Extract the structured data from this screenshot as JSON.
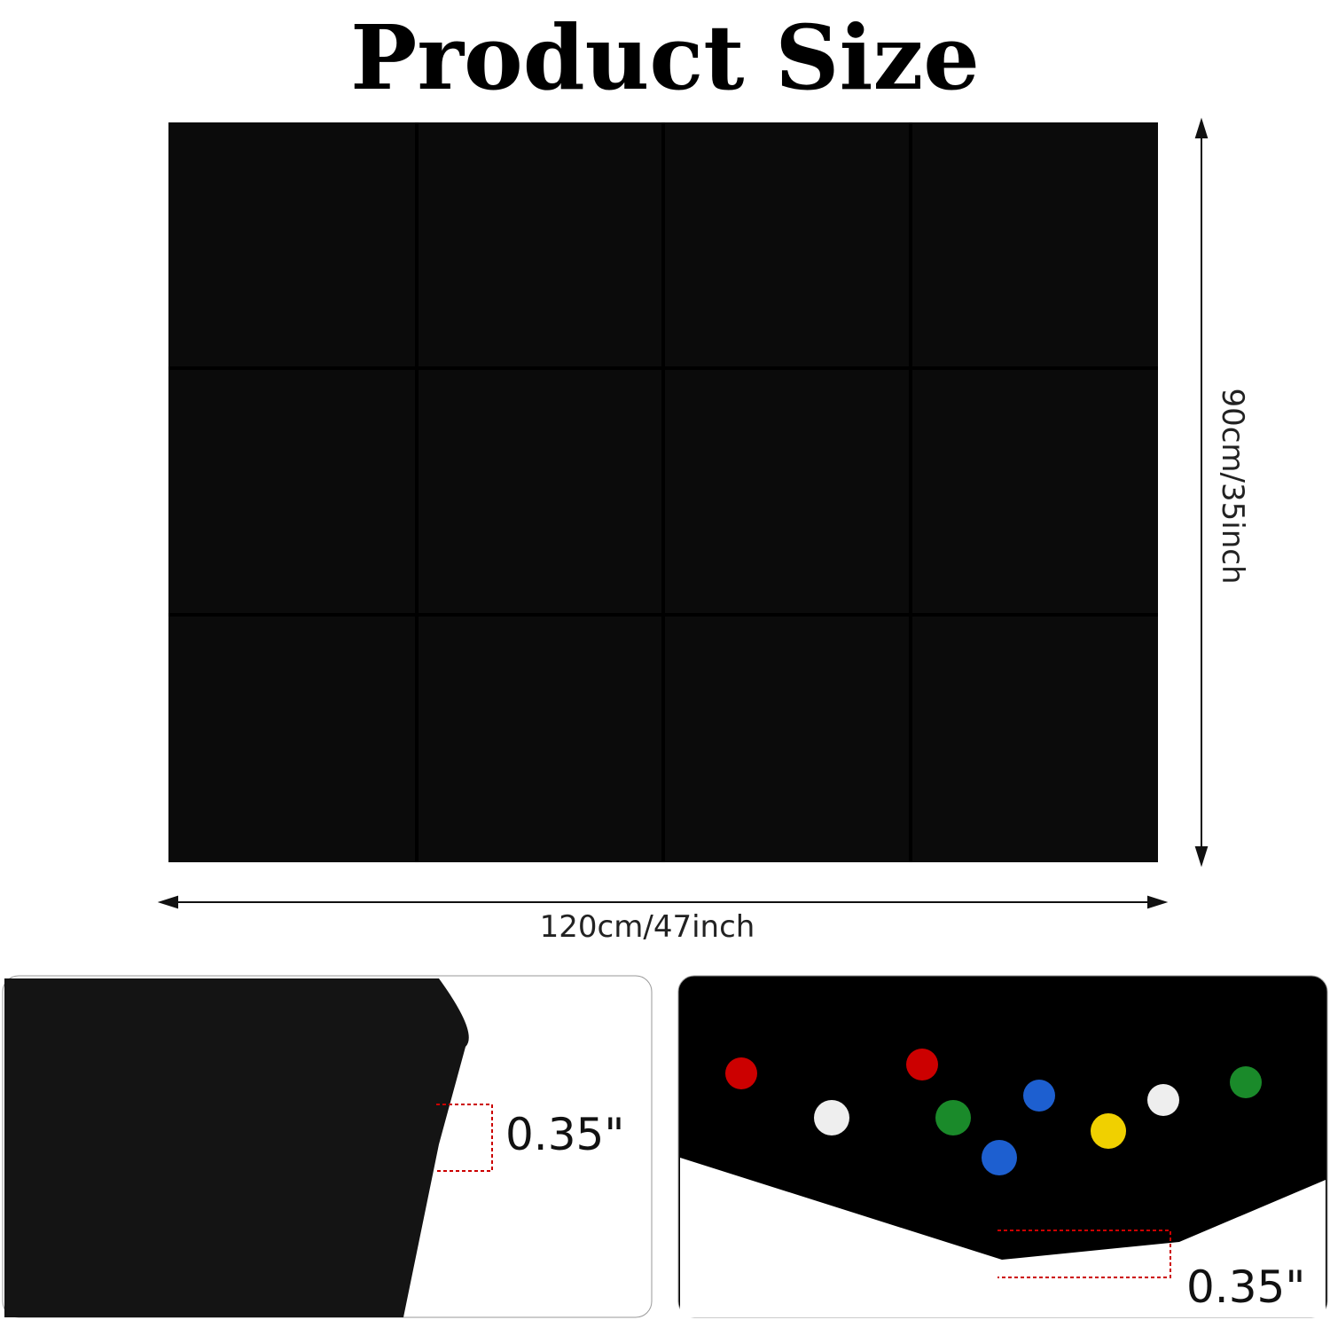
{
  "header": {
    "title": "Product Size"
  },
  "dimensions": {
    "width": "120cm/47inch",
    "height": "90cm/35inch",
    "thickness_left": "0.35\"",
    "thickness_right": "0.35\""
  }
}
